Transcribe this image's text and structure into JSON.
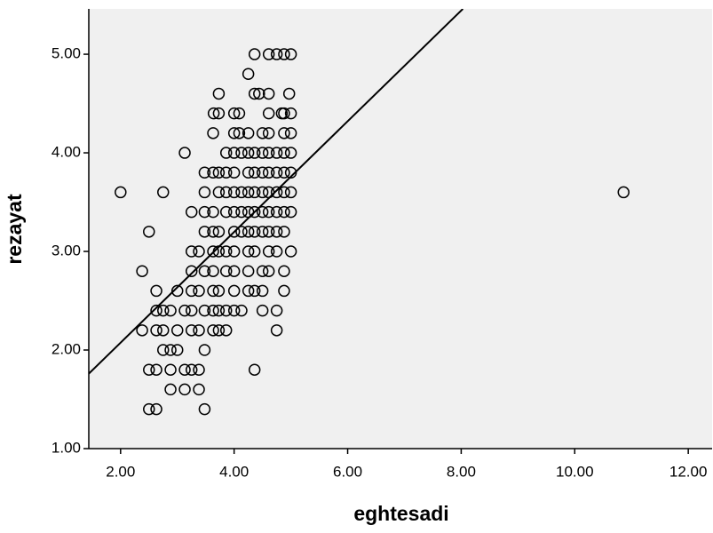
{
  "chart_data": {
    "type": "scatter",
    "xlabel": "eghtesadi",
    "ylabel": "rezayat",
    "xlim": [
      1.44,
      12.42
    ],
    "ylim": [
      1.0,
      5.46
    ],
    "xticks": [
      {
        "value": 2,
        "label": "2.00"
      },
      {
        "value": 4,
        "label": "4.00"
      },
      {
        "value": 6,
        "label": "6.00"
      },
      {
        "value": 8,
        "label": "8.00"
      },
      {
        "value": 10,
        "label": "10.00"
      },
      {
        "value": 12,
        "label": "12.00"
      }
    ],
    "yticks": [
      {
        "value": 1,
        "label": "1.00"
      },
      {
        "value": 2,
        "label": "2.00"
      },
      {
        "value": 3,
        "label": "3.00"
      },
      {
        "value": 4,
        "label": "4.00"
      },
      {
        "value": 5,
        "label": "5.00"
      }
    ],
    "series": [
      {
        "color": "#000000",
        "x": [
          4.36,
          4.61,
          4.75,
          4.88,
          5.0,
          4.25,
          3.73,
          4.36,
          4.44,
          4.61,
          4.97,
          3.64,
          3.73,
          4.0,
          4.09,
          4.61,
          4.84,
          4.88,
          5.0,
          3.63,
          4.0,
          4.09,
          4.25,
          4.5,
          4.61,
          4.88,
          5.0,
          3.13,
          3.86,
          4.0,
          4.13,
          4.25,
          4.36,
          4.5,
          4.61,
          4.75,
          4.88,
          5.0,
          3.48,
          3.63,
          3.73,
          3.86,
          4.0,
          4.25,
          4.36,
          4.5,
          4.61,
          4.75,
          4.88,
          5.0,
          2.0,
          2.75,
          3.48,
          3.73,
          3.86,
          4.0,
          4.13,
          4.25,
          4.36,
          4.5,
          4.61,
          4.75,
          4.88,
          5.0,
          10.86,
          3.25,
          3.48,
          3.63,
          3.86,
          4.0,
          4.13,
          4.25,
          4.36,
          4.5,
          4.61,
          4.75,
          4.88,
          5.0,
          2.5,
          3.48,
          3.63,
          3.73,
          4.0,
          4.13,
          4.25,
          4.36,
          4.5,
          4.61,
          4.75,
          4.88,
          3.25,
          3.38,
          3.63,
          3.73,
          3.86,
          4.0,
          4.25,
          4.36,
          4.61,
          4.75,
          5.0,
          2.38,
          3.25,
          3.48,
          3.63,
          3.86,
          4.0,
          4.25,
          4.5,
          4.61,
          4.88,
          2.63,
          3.0,
          3.25,
          3.38,
          3.63,
          3.73,
          4.0,
          4.25,
          4.36,
          4.5,
          4.88,
          2.63,
          2.75,
          2.88,
          3.13,
          3.25,
          3.48,
          3.63,
          3.73,
          3.86,
          4.0,
          4.13,
          4.5,
          4.75,
          2.38,
          2.63,
          2.75,
          3.0,
          3.25,
          3.38,
          3.63,
          3.73,
          3.86,
          4.75,
          2.75,
          2.88,
          3.0,
          3.48,
          2.5,
          2.63,
          2.88,
          3.13,
          3.25,
          3.38,
          4.36,
          2.88,
          3.13,
          3.38,
          2.5,
          2.63,
          3.48
        ],
        "values": [
          5.0,
          5.0,
          5.0,
          5.0,
          5.0,
          4.8,
          4.6,
          4.6,
          4.6,
          4.6,
          4.6,
          4.4,
          4.4,
          4.4,
          4.4,
          4.4,
          4.4,
          4.4,
          4.4,
          4.2,
          4.2,
          4.2,
          4.2,
          4.2,
          4.2,
          4.2,
          4.2,
          4.0,
          4.0,
          4.0,
          4.0,
          4.0,
          4.0,
          4.0,
          4.0,
          4.0,
          4.0,
          4.0,
          3.8,
          3.8,
          3.8,
          3.8,
          3.8,
          3.8,
          3.8,
          3.8,
          3.8,
          3.8,
          3.8,
          3.8,
          3.6,
          3.6,
          3.6,
          3.6,
          3.6,
          3.6,
          3.6,
          3.6,
          3.6,
          3.6,
          3.6,
          3.6,
          3.6,
          3.6,
          3.6,
          3.4,
          3.4,
          3.4,
          3.4,
          3.4,
          3.4,
          3.4,
          3.4,
          3.4,
          3.4,
          3.4,
          3.4,
          3.4,
          3.2,
          3.2,
          3.2,
          3.2,
          3.2,
          3.2,
          3.2,
          3.2,
          3.2,
          3.2,
          3.2,
          3.2,
          3.0,
          3.0,
          3.0,
          3.0,
          3.0,
          3.0,
          3.0,
          3.0,
          3.0,
          3.0,
          3.0,
          2.8,
          2.8,
          2.8,
          2.8,
          2.8,
          2.8,
          2.8,
          2.8,
          2.8,
          2.8,
          2.6,
          2.6,
          2.6,
          2.6,
          2.6,
          2.6,
          2.6,
          2.6,
          2.6,
          2.6,
          2.6,
          2.4,
          2.4,
          2.4,
          2.4,
          2.4,
          2.4,
          2.4,
          2.4,
          2.4,
          2.4,
          2.4,
          2.4,
          2.4,
          2.2,
          2.2,
          2.2,
          2.2,
          2.2,
          2.2,
          2.2,
          2.2,
          2.2,
          2.2,
          2.0,
          2.0,
          2.0,
          2.0,
          1.8,
          1.8,
          1.8,
          1.8,
          1.8,
          1.8,
          1.8,
          1.6,
          1.6,
          1.6,
          1.4,
          1.4,
          1.4
        ]
      }
    ],
    "fit_line": {
      "color": "#000000",
      "x": [
        1.44,
        8.03
      ],
      "values": [
        1.76,
        5.46
      ]
    },
    "background": "#f0f0f0"
  }
}
